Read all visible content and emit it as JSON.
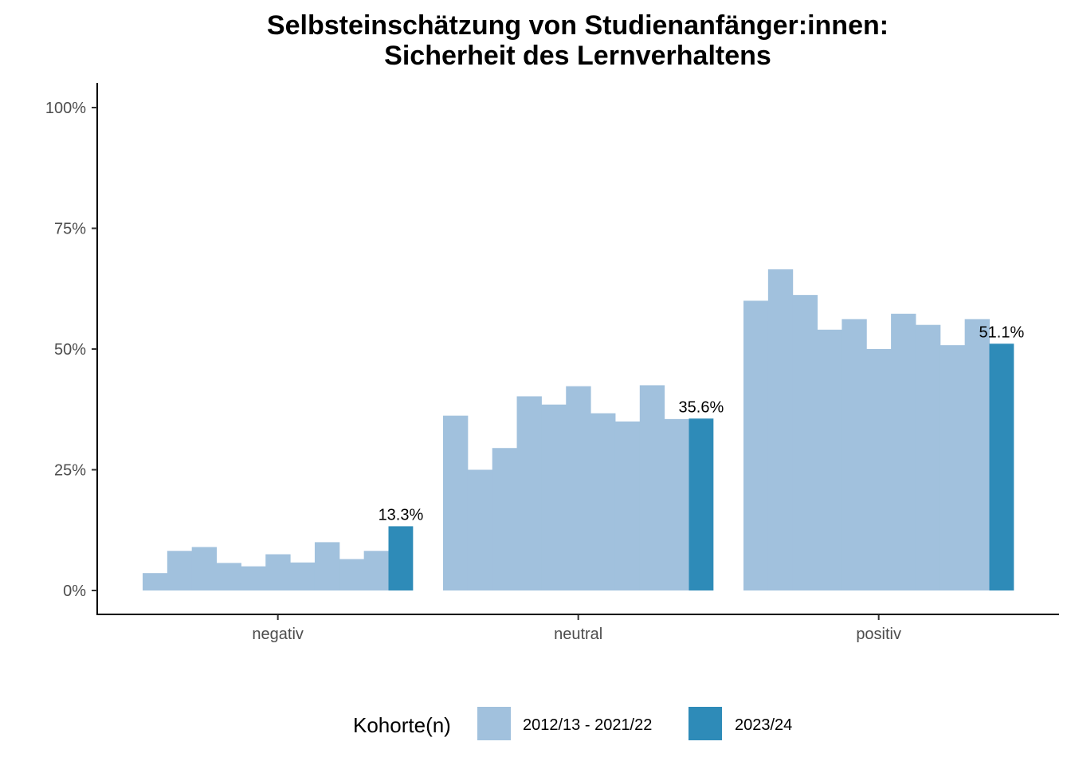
{
  "chart_data": {
    "type": "bar",
    "title_lines": [
      "Selbsteinschätzung von Studienanfänger:innen:",
      "Sicherheit des Lernverhaltens"
    ],
    "xlabel": "",
    "ylabel": "",
    "ylim": [
      0,
      1
    ],
    "yticks": [
      {
        "value": 0,
        "label": "0%"
      },
      {
        "value": 0.25,
        "label": "25%"
      },
      {
        "value": 0.5,
        "label": "50%"
      },
      {
        "value": 0.75,
        "label": "75%"
      },
      {
        "value": 1.0,
        "label": "100%"
      }
    ],
    "categories": [
      "negativ",
      "neutral",
      "positiv"
    ],
    "historic_values": [
      [
        0.036,
        0.082,
        0.09,
        0.057,
        0.05,
        0.075,
        0.058,
        0.1,
        0.065,
        0.082
      ],
      [
        0.362,
        0.25,
        0.295,
        0.402,
        0.385,
        0.423,
        0.367,
        0.35,
        0.425,
        0.355
      ],
      [
        0.6,
        0.665,
        0.612,
        0.54,
        0.562,
        0.5,
        0.573,
        0.55,
        0.508,
        0.562
      ]
    ],
    "current_values": [
      0.133,
      0.356,
      0.511
    ],
    "current_labels": [
      "13.3%",
      "35.6%",
      "51.1%"
    ],
    "grid": false,
    "legend": {
      "title": "Kohorte(n)",
      "placement": "bottom",
      "entries": [
        {
          "label": "2012/13 - 2021/22",
          "color": "#a1c1dd"
        },
        {
          "label": "2023/24",
          "color": "#2e8bb8"
        }
      ]
    }
  }
}
